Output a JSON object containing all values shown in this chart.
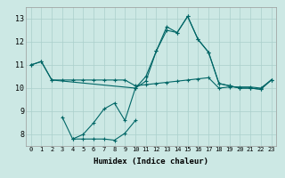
{
  "title": "",
  "xlabel": "Humidex (Indice chaleur)",
  "background_color": "#cce8e4",
  "grid_color": "#aacfcb",
  "line_color": "#006666",
  "xlim": [
    -0.5,
    23.5
  ],
  "ylim": [
    7.5,
    13.5
  ],
  "xticks": [
    0,
    1,
    2,
    3,
    4,
    5,
    6,
    7,
    8,
    9,
    10,
    11,
    12,
    13,
    14,
    15,
    16,
    17,
    18,
    19,
    20,
    21,
    22,
    23
  ],
  "yticks": [
    8,
    9,
    10,
    11,
    12,
    13
  ],
  "series": [
    {
      "x": [
        0,
        1,
        2,
        10,
        11,
        12,
        13,
        14,
        15,
        16,
        17,
        18,
        19,
        20,
        21,
        22,
        23
      ],
      "y": [
        11.0,
        11.15,
        10.35,
        10.0,
        10.3,
        11.6,
        12.65,
        12.4,
        13.1,
        12.1,
        11.55,
        10.2,
        10.1,
        10.0,
        10.0,
        9.95,
        10.35
      ]
    },
    {
      "x": [
        0,
        1,
        2,
        3,
        4,
        5,
        6,
        7,
        8,
        9,
        10,
        11,
        12,
        13,
        14,
        15,
        16,
        17,
        18,
        19,
        20,
        21,
        22,
        23
      ],
      "y": [
        11.0,
        11.15,
        10.35,
        10.35,
        10.35,
        10.35,
        10.35,
        10.35,
        10.35,
        10.35,
        10.1,
        10.15,
        10.2,
        10.25,
        10.3,
        10.35,
        10.4,
        10.45,
        10.0,
        10.05,
        10.05,
        10.05,
        10.0,
        10.35
      ]
    },
    {
      "x": [
        3,
        4,
        5,
        6,
        7,
        8,
        9,
        10
      ],
      "y": [
        8.75,
        7.8,
        7.8,
        7.8,
        7.8,
        7.75,
        8.05,
        8.6
      ]
    },
    {
      "x": [
        4,
        5,
        6,
        7,
        8,
        9,
        10,
        11,
        12,
        13,
        14,
        15,
        16,
        17,
        18,
        19,
        20,
        21,
        22,
        23
      ],
      "y": [
        7.8,
        8.0,
        8.5,
        9.1,
        9.35,
        8.6,
        10.0,
        10.5,
        11.6,
        12.5,
        12.4,
        13.1,
        12.1,
        11.55,
        10.2,
        10.1,
        10.0,
        10.0,
        9.95,
        10.35
      ]
    }
  ]
}
